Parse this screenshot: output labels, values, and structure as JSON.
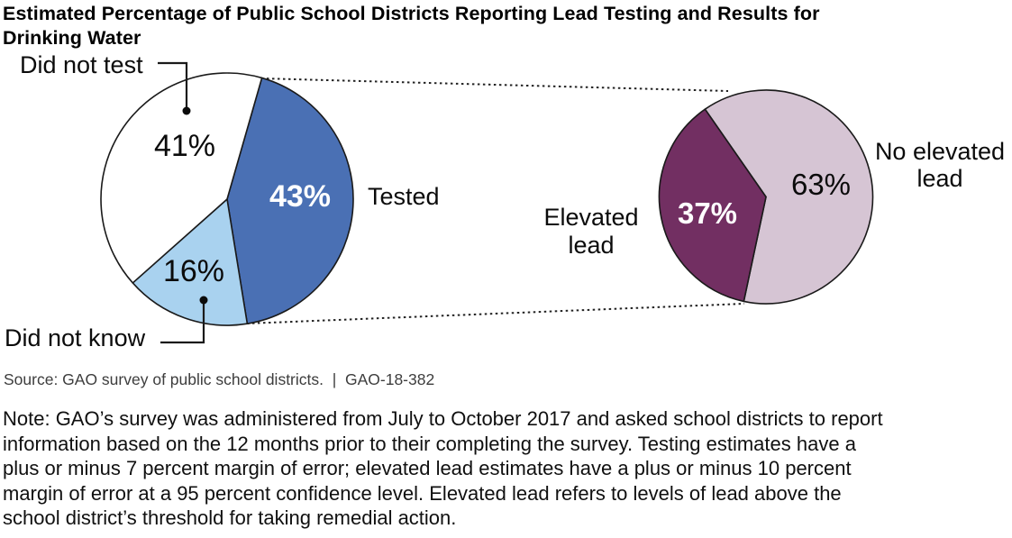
{
  "title": "Estimated Percentage of Public School Districts Reporting Lead Testing and Results for\nDrinking Water",
  "source_line": "Source: GAO survey of public school districts.  |  GAO-18-382",
  "note": "Note: GAO’s survey was administered from July to October 2017 and asked school districts to report\ninformation based on the 12 months prior to their completing the survey. Testing estimates have a\nplus or minus 7 percent margin of error; elevated lead estimates have a plus or minus 10 percent\nmargin of error at a 95 percent confidence level. Elevated lead refers to levels of lead above the\nschool district’s threshold for taking remedial action.",
  "chart_data": [
    {
      "type": "pie",
      "id": "testing",
      "units": "percent",
      "slices": [
        {
          "label": "Tested",
          "value": 43,
          "display": "43%",
          "color": "#4A70B4",
          "label_color": "#ffffff"
        },
        {
          "label": "Did not know",
          "value": 16,
          "display": "16%",
          "color": "#A9D2EF",
          "label_color": "#000000"
        },
        {
          "label": "Did not test",
          "value": 41,
          "display": "41%",
          "color": "#FFFFFF",
          "label_color": "#000000"
        }
      ]
    },
    {
      "type": "pie",
      "id": "elevated-lead",
      "units": "percent",
      "slices": [
        {
          "label": "No elevated lead",
          "value": 63,
          "display": "63%",
          "color": "#D6C5D4",
          "label_color": "#000000"
        },
        {
          "label": "Elevated lead",
          "value": 37,
          "display": "37%",
          "color": "#722F62",
          "label_color": "#ffffff"
        }
      ]
    }
  ],
  "style": {
    "outline_color": "#1a1a1a",
    "background": "#ffffff"
  }
}
